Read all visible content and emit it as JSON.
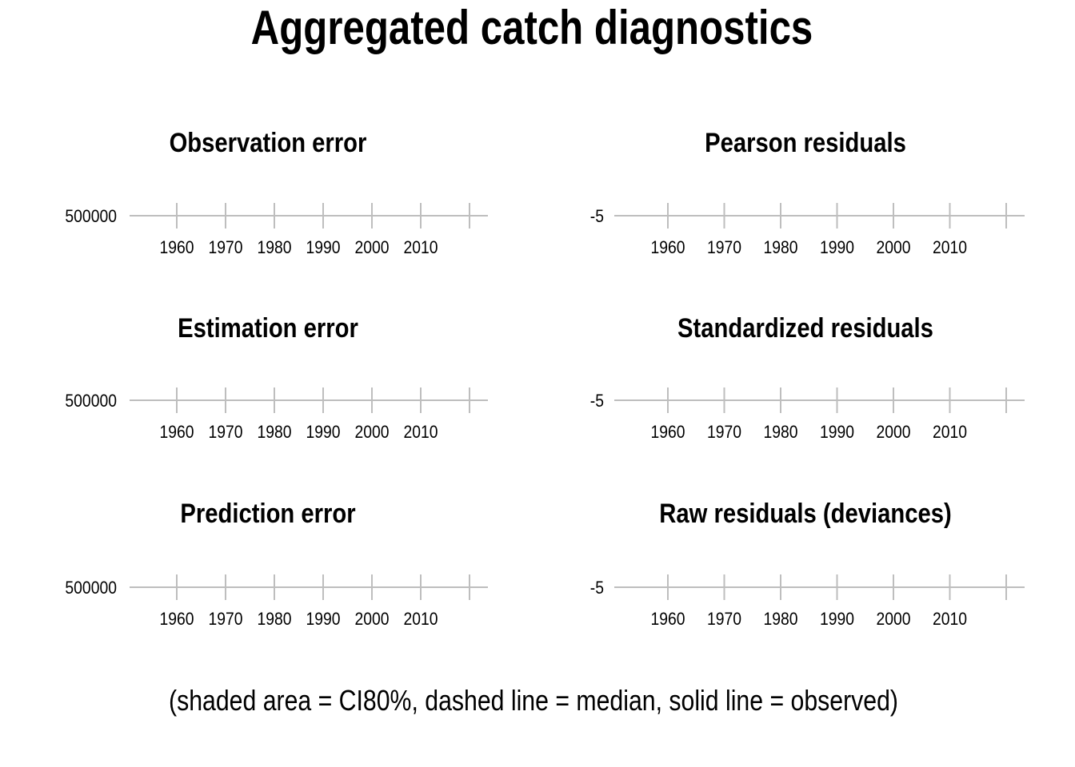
{
  "title": "Aggregated catch diagnostics",
  "caption": "(shaded area = CI80%, dashed line = median, solid line = observed)",
  "chart_data": [
    {
      "type": "line",
      "title": "Observation error",
      "xlabel": "",
      "ylabel": "",
      "x_ticks": [
        "1960",
        "1970",
        "1980",
        "1990",
        "2000",
        "2010"
      ],
      "y_ticks": [
        "500000"
      ],
      "xlim": [
        1950,
        2020
      ],
      "series": []
    },
    {
      "type": "line",
      "title": "Pearson residuals",
      "xlabel": "",
      "ylabel": "",
      "x_ticks": [
        "1960",
        "1970",
        "1980",
        "1990",
        "2000",
        "2010"
      ],
      "y_ticks": [
        "-5"
      ],
      "xlim": [
        1950,
        2020
      ],
      "series": []
    },
    {
      "type": "line",
      "title": "Estimation error",
      "xlabel": "",
      "ylabel": "",
      "x_ticks": [
        "1960",
        "1970",
        "1980",
        "1990",
        "2000",
        "2010"
      ],
      "y_ticks": [
        "500000"
      ],
      "xlim": [
        1950,
        2020
      ],
      "series": []
    },
    {
      "type": "line",
      "title": "Standardized residuals",
      "xlabel": "",
      "ylabel": "",
      "x_ticks": [
        "1960",
        "1970",
        "1980",
        "1990",
        "2000",
        "2010"
      ],
      "y_ticks": [
        "-5"
      ],
      "xlim": [
        1950,
        2020
      ],
      "series": []
    },
    {
      "type": "line",
      "title": "Prediction error",
      "xlabel": "",
      "ylabel": "",
      "x_ticks": [
        "1960",
        "1970",
        "1980",
        "1990",
        "2000",
        "2010"
      ],
      "y_ticks": [
        "500000"
      ],
      "xlim": [
        1950,
        2020
      ],
      "series": []
    },
    {
      "type": "line",
      "title": "Raw residuals (deviances)",
      "xlabel": "",
      "ylabel": "",
      "x_ticks": [
        "1960",
        "1970",
        "1980",
        "1990",
        "2000",
        "2010"
      ],
      "y_ticks": [
        "-5"
      ],
      "xlim": [
        1950,
        2020
      ],
      "series": []
    }
  ]
}
